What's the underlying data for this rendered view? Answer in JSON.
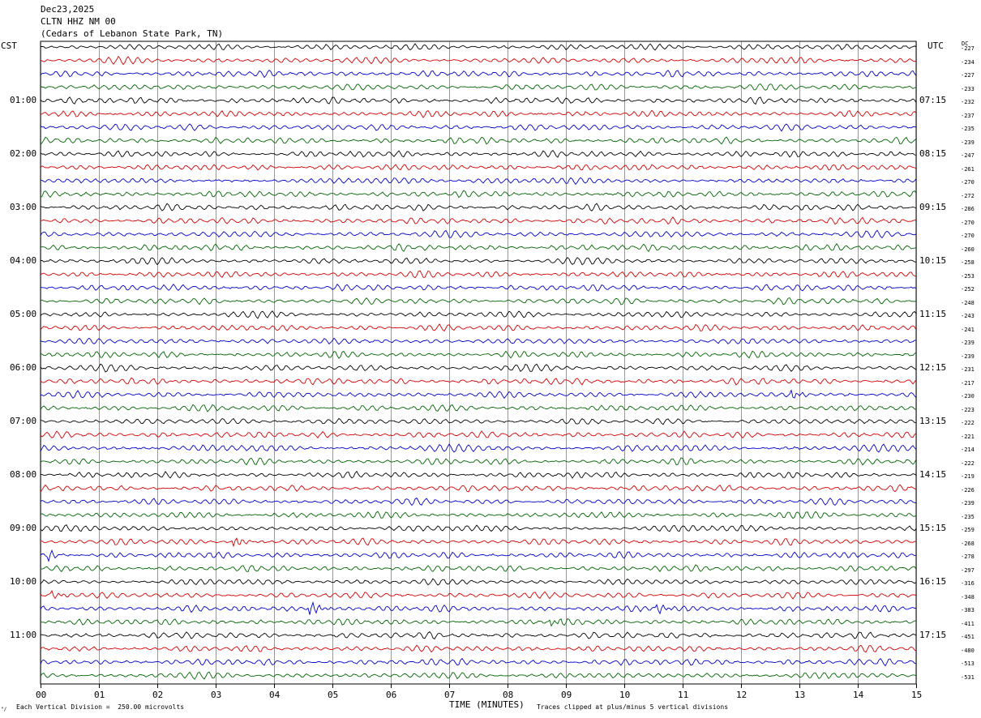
{
  "header": {
    "date": "Dec23,2025",
    "station": "CLTN HHZ NM 00",
    "location": "(Cedars of Lebanon State Park, TN)"
  },
  "left_zone": "CST",
  "right_zone": "UTC",
  "dc_label": "DC",
  "footer": {
    "scale_note": "Each Vertical Division =  250.00 microvolts",
    "clip_note": "Traces clipped at plus/minus 5 vertical divisions",
    "corner_mark": "\"/"
  },
  "colors": {
    "trace_cycle": [
      "#000000",
      "#d40000",
      "#0000c8",
      "#006400"
    ],
    "grid": "#000000",
    "background": "#ffffff"
  },
  "chart_data": {
    "type": "line",
    "title": "",
    "xlabel": "TIME (MINUTES)",
    "xlim": [
      0,
      15
    ],
    "x_ticks": [
      "00",
      "01",
      "02",
      "03",
      "04",
      "05",
      "06",
      "07",
      "08",
      "09",
      "10",
      "11",
      "12",
      "13",
      "14",
      "15"
    ],
    "trace_count": 48,
    "trace_minutes": 15,
    "left_hour_labels": [
      "01:00",
      "02:00",
      "03:00",
      "04:00",
      "05:00",
      "06:00",
      "07:00",
      "08:00",
      "09:00",
      "10:00",
      "11:00"
    ],
    "right_hour_labels": [
      "07:15",
      "08:15",
      "09:15",
      "10:15",
      "11:15",
      "12:15",
      "13:15",
      "14:15",
      "15:15",
      "16:15",
      "17:15"
    ],
    "dc_offsets": [
      "-227",
      "-234",
      "-227",
      "-233",
      "-232",
      "-237",
      "-235",
      "-239",
      "-247",
      "-261",
      "-270",
      "-272",
      "-286",
      "-270",
      "-270",
      "-260",
      "-258",
      "-253",
      "-252",
      "-248",
      "-243",
      "-241",
      "-239",
      "-239",
      "-231",
      "-217",
      "-230",
      "-223",
      "-222",
      "-221",
      "-214",
      "-222",
      "-219",
      "-226",
      "-239",
      "-235",
      "-259",
      "-268",
      "-278",
      "-297",
      "-316",
      "-348",
      "-383",
      "-411",
      "-451",
      "-480",
      "-513",
      "-531"
    ],
    "events": [
      {
        "trace": 37,
        "minute": 3.35,
        "amplitude": 1.6
      },
      {
        "trace": 38,
        "minute": 0.15,
        "amplitude": 1.3
      },
      {
        "trace": 41,
        "minute": 0.2,
        "amplitude": 1.2
      },
      {
        "trace": 42,
        "minute": 4.65,
        "amplitude": 2.2
      },
      {
        "trace": 42,
        "minute": 10.6,
        "amplitude": 1.3
      },
      {
        "trace": 43,
        "minute": 8.75,
        "amplitude": 1.6
      },
      {
        "trace": 26,
        "minute": 12.9,
        "amplitude": 1.4
      }
    ]
  }
}
